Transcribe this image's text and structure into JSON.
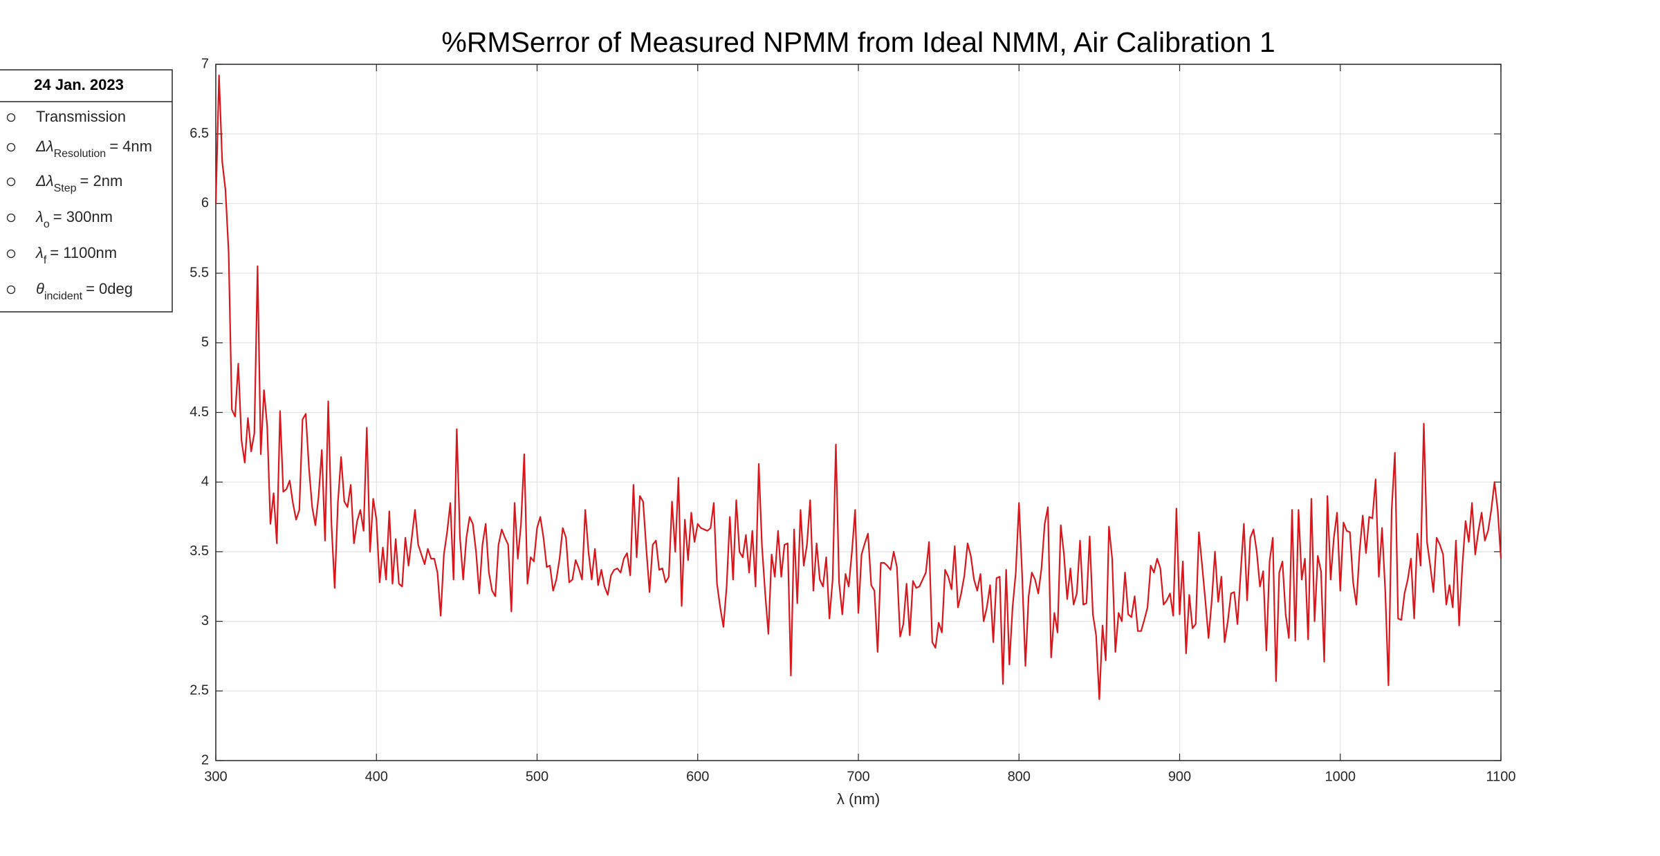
{
  "chart_data": {
    "type": "line",
    "title": "%RMSerror of Measured NPMM from Ideal NMM,  Air Calibration 1",
    "x_label": "λ (nm)",
    "xlim": [
      300,
      1100
    ],
    "xticks": [
      300,
      400,
      500,
      600,
      700,
      800,
      900,
      1000,
      1100
    ],
    "ylim": [
      2,
      7
    ],
    "yticks": [
      2,
      2.5,
      3,
      3.5,
      4,
      4.5,
      5,
      5.5,
      6,
      6.5,
      7
    ],
    "grid": true,
    "legend_box": {
      "title": "24 Jan. 2023",
      "entries": [
        {
          "text": "Transmission"
        },
        {
          "symbol": "Δλ",
          "sub": "Resolution",
          "text": "= 4nm"
        },
        {
          "symbol": "Δλ",
          "sub": "Step",
          "text": "= 2nm"
        },
        {
          "symbol": "λ",
          "sub": "o",
          "text": "= 300nm"
        },
        {
          "symbol": "λ",
          "sub": "f",
          "text": "= 1100nm"
        },
        {
          "symbol": "θ",
          "sub": "incident",
          "text": "= 0deg"
        }
      ]
    },
    "series": [
      {
        "color": "#d9161c",
        "x": [
          300,
          302,
          304,
          306,
          308,
          310,
          312,
          314,
          316,
          318,
          320,
          322,
          324,
          326,
          328,
          330,
          332,
          334,
          336,
          338,
          340,
          342,
          344,
          346,
          348,
          350,
          352,
          354,
          356,
          358,
          360,
          362,
          364,
          366,
          368,
          370,
          372,
          374,
          376,
          378,
          380,
          382,
          384,
          386,
          388,
          390,
          392,
          394,
          396,
          398,
          400,
          402,
          404,
          406,
          408,
          410,
          412,
          414,
          416,
          418,
          420,
          422,
          424,
          426,
          428,
          430,
          432,
          434,
          436,
          438,
          440,
          442,
          444,
          446,
          448,
          450,
          452,
          454,
          456,
          458,
          460,
          462,
          464,
          466,
          468,
          470,
          472,
          474,
          476,
          478,
          480,
          482,
          484,
          486,
          488,
          490,
          492,
          494,
          496,
          498,
          500,
          502,
          504,
          506,
          508,
          510,
          512,
          514,
          516,
          518,
          520,
          522,
          524,
          526,
          528,
          530,
          532,
          534,
          536,
          538,
          540,
          542,
          544,
          546,
          548,
          550,
          552,
          554,
          556,
          558,
          560,
          562,
          564,
          566,
          568,
          570,
          572,
          574,
          576,
          578,
          580,
          582,
          584,
          586,
          588,
          590,
          592,
          594,
          596,
          598,
          600,
          602,
          604,
          606,
          608,
          610,
          612,
          614,
          616,
          618,
          620,
          622,
          624,
          626,
          628,
          630,
          632,
          634,
          636,
          638,
          640,
          642,
          644,
          646,
          648,
          650,
          652,
          654,
          656,
          658,
          660,
          662,
          664,
          666,
          668,
          670,
          672,
          674,
          676,
          678,
          680,
          682,
          684,
          686,
          688,
          690,
          692,
          694,
          696,
          698,
          700,
          702,
          704,
          706,
          708,
          710,
          712,
          714,
          716,
          718,
          720,
          722,
          724,
          726,
          728,
          730,
          732,
          734,
          736,
          738,
          740,
          742,
          744,
          746,
          748,
          750,
          752,
          754,
          756,
          758,
          760,
          762,
          764,
          766,
          768,
          770,
          772,
          774,
          776,
          778,
          780,
          782,
          784,
          786,
          788,
          790,
          792,
          794,
          796,
          798,
          800,
          802,
          804,
          806,
          808,
          810,
          812,
          814,
          816,
          818,
          820,
          822,
          824,
          826,
          828,
          830,
          832,
          834,
          836,
          838,
          840,
          842,
          844,
          846,
          848,
          850,
          852,
          854,
          856,
          858,
          860,
          862,
          864,
          866,
          868,
          870,
          872,
          874,
          876,
          878,
          880,
          882,
          884,
          886,
          888,
          890,
          892,
          894,
          896,
          898,
          900,
          902,
          904,
          906,
          908,
          910,
          912,
          914,
          916,
          918,
          920,
          922,
          924,
          926,
          928,
          930,
          932,
          934,
          936,
          938,
          940,
          942,
          944,
          946,
          948,
          950,
          952,
          954,
          956,
          958,
          960,
          962,
          964,
          966,
          968,
          970,
          972,
          974,
          976,
          978,
          980,
          982,
          984,
          986,
          988,
          990,
          992,
          994,
          996,
          998,
          1000,
          1002,
          1004,
          1006,
          1008,
          1010,
          1012,
          1014,
          1016,
          1018,
          1020,
          1022,
          1024,
          1026,
          1028,
          1030,
          1032,
          1034,
          1036,
          1038,
          1040,
          1042,
          1044,
          1046,
          1048,
          1050,
          1052,
          1054,
          1056,
          1058,
          1060,
          1062,
          1064,
          1066,
          1068,
          1070,
          1072,
          1074,
          1076,
          1078,
          1080,
          1082,
          1084,
          1086,
          1088,
          1090,
          1092,
          1094,
          1096,
          1098,
          1100
        ],
        "values": [
          6.0,
          6.92,
          6.3,
          6.1,
          5.65,
          4.52,
          4.47,
          4.85,
          4.3,
          4.14,
          4.46,
          4.22,
          4.35,
          5.55,
          4.2,
          4.66,
          4.4,
          3.7,
          3.92,
          3.56,
          4.51,
          3.93,
          3.95,
          4.01,
          3.85,
          3.73,
          3.8,
          4.45,
          4.49,
          4.1,
          3.82,
          3.69,
          3.9,
          4.23,
          3.58,
          4.58,
          3.7,
          3.24,
          3.85,
          4.18,
          3.86,
          3.82,
          3.98,
          3.56,
          3.72,
          3.8,
          3.65,
          4.39,
          3.5,
          3.88,
          3.73,
          3.28,
          3.53,
          3.3,
          3.79,
          3.27,
          3.59,
          3.27,
          3.25,
          3.6,
          3.4,
          3.6,
          3.8,
          3.55,
          3.48,
          3.41,
          3.52,
          3.45,
          3.45,
          3.35,
          3.04,
          3.48,
          3.64,
          3.85,
          3.3,
          4.38,
          3.6,
          3.3,
          3.6,
          3.75,
          3.7,
          3.5,
          3.2,
          3.55,
          3.7,
          3.35,
          3.22,
          3.18,
          3.55,
          3.66,
          3.6,
          3.55,
          3.07,
          3.85,
          3.45,
          3.7,
          4.2,
          3.27,
          3.46,
          3.43,
          3.67,
          3.75,
          3.6,
          3.39,
          3.4,
          3.22,
          3.3,
          3.45,
          3.67,
          3.6,
          3.28,
          3.3,
          3.44,
          3.38,
          3.3,
          3.8,
          3.5,
          3.3,
          3.52,
          3.26,
          3.37,
          3.25,
          3.19,
          3.33,
          3.37,
          3.38,
          3.35,
          3.45,
          3.49,
          3.33,
          3.98,
          3.46,
          3.9,
          3.86,
          3.52,
          3.21,
          3.55,
          3.58,
          3.37,
          3.38,
          3.28,
          3.32,
          3.86,
          3.5,
          4.03,
          3.11,
          3.73,
          3.44,
          3.78,
          3.57,
          3.7,
          3.67,
          3.66,
          3.65,
          3.67,
          3.85,
          3.27,
          3.1,
          2.96,
          3.25,
          3.75,
          3.3,
          3.87,
          3.5,
          3.46,
          3.62,
          3.35,
          3.65,
          3.25,
          4.13,
          3.54,
          3.2,
          2.91,
          3.48,
          3.32,
          3.65,
          3.32,
          3.55,
          3.56,
          2.61,
          3.66,
          3.13,
          3.8,
          3.4,
          3.55,
          3.87,
          3.22,
          3.56,
          3.3,
          3.25,
          3.46,
          3.02,
          3.3,
          4.27,
          3.28,
          3.05,
          3.34,
          3.25,
          3.5,
          3.8,
          3.06,
          3.48,
          3.56,
          3.63,
          3.26,
          3.22,
          2.78,
          3.42,
          3.42,
          3.4,
          3.37,
          3.5,
          3.39,
          2.89,
          2.98,
          3.27,
          2.9,
          3.29,
          3.24,
          3.25,
          3.3,
          3.35,
          3.57,
          2.85,
          2.81,
          2.99,
          2.92,
          3.37,
          3.32,
          3.23,
          3.54,
          3.1,
          3.2,
          3.33,
          3.56,
          3.47,
          3.3,
          3.22,
          3.34,
          3.0,
          3.1,
          3.26,
          2.85,
          3.31,
          3.32,
          2.55,
          3.37,
          2.69,
          3.1,
          3.35,
          3.85,
          3.32,
          2.68,
          3.18,
          3.35,
          3.3,
          3.2,
          3.38,
          3.7,
          3.82,
          2.74,
          3.06,
          2.92,
          3.69,
          3.48,
          3.16,
          3.38,
          3.12,
          3.2,
          3.58,
          3.12,
          3.13,
          3.61,
          3.05,
          2.9,
          2.44,
          2.97,
          2.72,
          3.68,
          3.45,
          2.78,
          3.06,
          3.0,
          3.35,
          3.05,
          3.03,
          3.18,
          2.93,
          2.93,
          3.01,
          3.1,
          3.4,
          3.35,
          3.45,
          3.38,
          3.12,
          3.15,
          3.2,
          3.04,
          3.81,
          3.05,
          3.43,
          2.77,
          3.19,
          2.95,
          2.98,
          3.64,
          3.4,
          3.15,
          2.88,
          3.15,
          3.5,
          3.14,
          3.32,
          2.85,
          3.0,
          3.2,
          3.21,
          2.98,
          3.35,
          3.7,
          3.15,
          3.6,
          3.66,
          3.5,
          3.25,
          3.36,
          2.79,
          3.43,
          3.6,
          2.57,
          3.35,
          3.43,
          3.05,
          2.88,
          3.8,
          2.86,
          3.8,
          3.3,
          3.45,
          2.87,
          3.88,
          3.0,
          3.47,
          3.36,
          2.71,
          3.9,
          3.3,
          3.6,
          3.78,
          3.22,
          3.71,
          3.65,
          3.64,
          3.28,
          3.12,
          3.5,
          3.76,
          3.49,
          3.75,
          3.74,
          4.02,
          3.32,
          3.67,
          3.22,
          2.54,
          3.8,
          4.21,
          3.02,
          3.01,
          3.2,
          3.3,
          3.45,
          3.02,
          3.63,
          3.4,
          4.42,
          3.57,
          3.4,
          3.21,
          3.6,
          3.55,
          3.48,
          3.12,
          3.26,
          3.1,
          3.58,
          2.97,
          3.4,
          3.72,
          3.57,
          3.85,
          3.48,
          3.65,
          3.78,
          3.58,
          3.65,
          3.8,
          4.0,
          3.8,
          3.45
        ]
      }
    ]
  }
}
